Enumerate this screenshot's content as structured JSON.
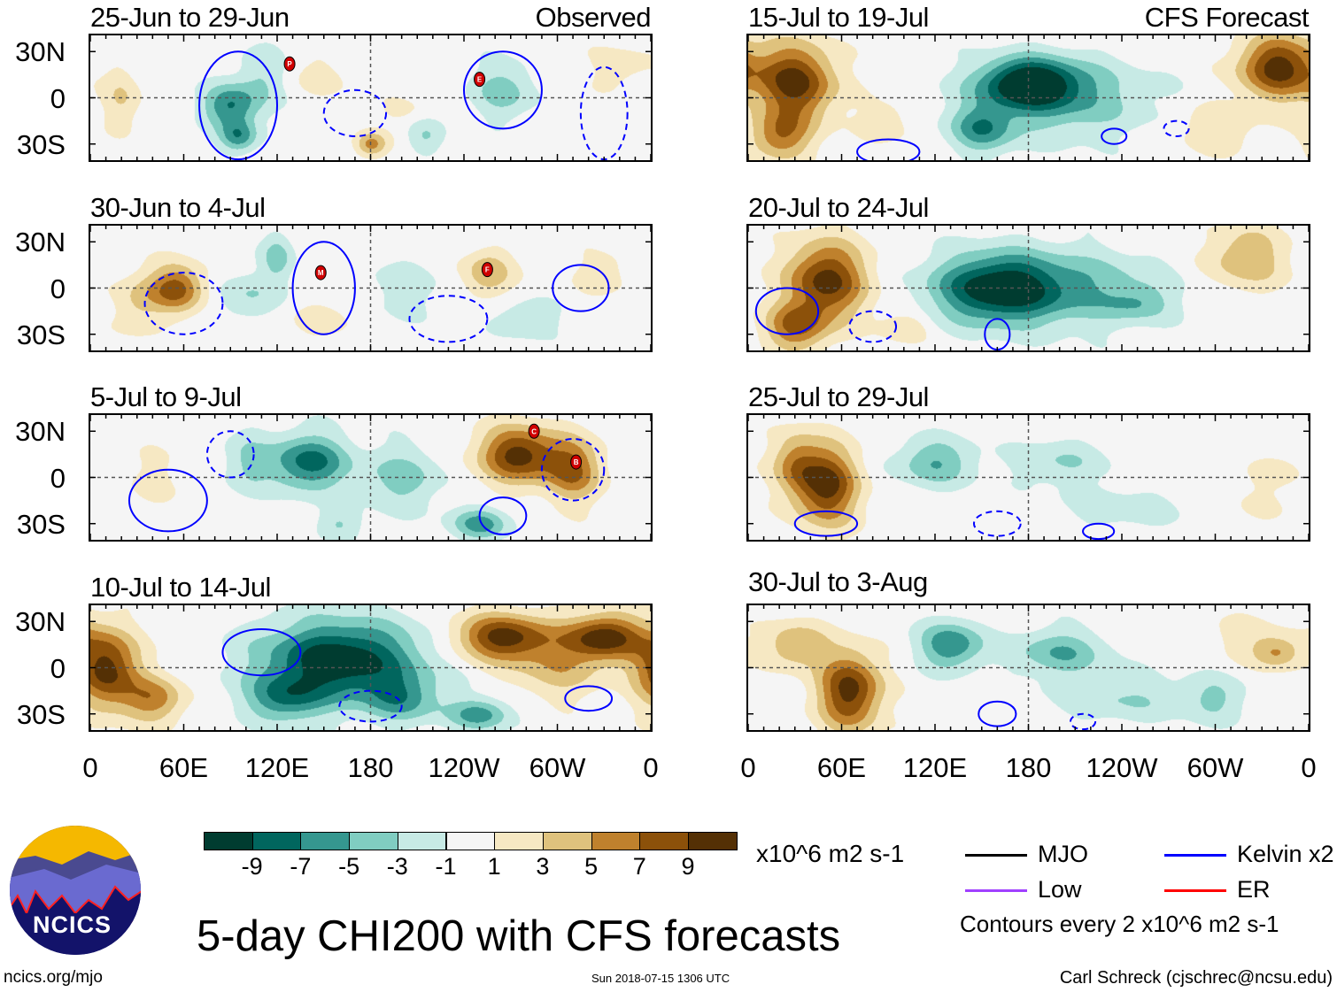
{
  "figure_title": "5-day CHI200 with CFS forecasts",
  "left_header": "Observed",
  "right_header": "CFS Forecast",
  "lat_labels": [
    "30N",
    "0",
    "30S"
  ],
  "lon_labels": [
    "0",
    "60E",
    "120E",
    "180",
    "120W",
    "60W",
    "0"
  ],
  "colorbar": {
    "unit": "x10^6 m2 s-1",
    "labels": [
      "-9",
      "-7",
      "-5",
      "-3",
      "-1",
      "1",
      "3",
      "5",
      "7",
      "9"
    ],
    "edges": [
      -9,
      -7,
      -5,
      -3,
      -1,
      1,
      3,
      5,
      7,
      9
    ],
    "colors": [
      "#003c30",
      "#01665e",
      "#35978f",
      "#80cdc1",
      "#c7eae5",
      "#f5f5f5",
      "#f6e8c3",
      "#dfc27d",
      "#bf812d",
      "#8c510a",
      "#543005"
    ]
  },
  "legend": {
    "items": [
      {
        "label": "MJO",
        "color": "#000000"
      },
      {
        "label": "Kelvin x2",
        "color": "#0000ff"
      },
      {
        "label": "Low",
        "color": "#a040ff"
      },
      {
        "label": "ER",
        "color": "#ff0000"
      }
    ],
    "contour_note": "Contours every 2 x10^6 m2 s-1"
  },
  "footer": {
    "site": "ncics.org/mjo",
    "timestamp": "Sun 2018-07-15 1306 UTC",
    "author": "Carl Schreck (cjschrec@ncsu.edu)",
    "logo_text": "NCICS"
  },
  "panels": [
    {
      "title": "25-Jun to 29-Jun",
      "column": "left",
      "row": 0,
      "anomalies": [
        [
          90,
          -5,
          18,
          14,
          -7
        ],
        [
          95,
          -25,
          12,
          10,
          -6
        ],
        [
          110,
          15,
          15,
          20,
          -3
        ],
        [
          265,
          5,
          20,
          18,
          -4
        ],
        [
          180,
          -30,
          10,
          8,
          6
        ],
        [
          20,
          0,
          12,
          20,
          3
        ],
        [
          150,
          15,
          25,
          15,
          1.5
        ],
        [
          340,
          20,
          20,
          15,
          2
        ],
        [
          215,
          -25,
          12,
          10,
          -3
        ],
        [
          200,
          -8,
          15,
          8,
          1.5
        ]
      ],
      "kelvin": [
        [
          95,
          -5,
          25,
          35,
          false
        ],
        [
          265,
          5,
          25,
          25,
          false
        ],
        [
          170,
          -10,
          20,
          15,
          true
        ],
        [
          330,
          -10,
          15,
          30,
          true
        ]
      ],
      "storms": [
        [
          128,
          22,
          "P"
        ],
        [
          250,
          12,
          "E"
        ]
      ]
    },
    {
      "title": "30-Jun to 4-Jul",
      "column": "left",
      "row": 1,
      "anomalies": [
        [
          55,
          0,
          18,
          15,
          8
        ],
        [
          30,
          -10,
          15,
          20,
          3
        ],
        [
          120,
          20,
          10,
          15,
          -4
        ],
        [
          100,
          -5,
          20,
          15,
          -3
        ],
        [
          150,
          -20,
          20,
          12,
          2
        ],
        [
          255,
          10,
          15,
          15,
          5
        ],
        [
          280,
          -20,
          20,
          12,
          -3
        ],
        [
          200,
          0,
          25,
          20,
          -2
        ],
        [
          330,
          10,
          20,
          15,
          2
        ]
      ],
      "kelvin": [
        [
          150,
          0,
          20,
          30,
          false
        ],
        [
          315,
          0,
          18,
          15,
          false
        ],
        [
          60,
          -10,
          25,
          20,
          true
        ],
        [
          230,
          -20,
          25,
          15,
          true
        ]
      ],
      "storms": [
        [
          148,
          10,
          "M"
        ],
        [
          255,
          12,
          "F"
        ]
      ]
    },
    {
      "title": "5-Jul to 9-Jul",
      "column": "left",
      "row": 2,
      "anomalies": [
        [
          140,
          10,
          25,
          18,
          -8
        ],
        [
          200,
          0,
          25,
          20,
          -4
        ],
        [
          100,
          10,
          15,
          20,
          -3
        ],
        [
          275,
          15,
          25,
          18,
          10
        ],
        [
          310,
          5,
          18,
          20,
          7
        ],
        [
          250,
          -30,
          18,
          10,
          -6
        ],
        [
          40,
          0,
          20,
          20,
          1.5
        ],
        [
          160,
          -30,
          15,
          10,
          -3
        ]
      ],
      "kelvin": [
        [
          265,
          -25,
          15,
          12,
          false
        ],
        [
          50,
          -15,
          25,
          20,
          false
        ],
        [
          90,
          15,
          15,
          15,
          true
        ],
        [
          310,
          5,
          20,
          20,
          true
        ]
      ],
      "storms": [
        [
          285,
          30,
          "C"
        ],
        [
          312,
          10,
          "B"
        ]
      ]
    },
    {
      "title": "10-Jul to 14-Jul",
      "column": "left",
      "row": 3,
      "anomalies": [
        [
          10,
          0,
          20,
          25,
          10
        ],
        [
          40,
          -20,
          20,
          15,
          6
        ],
        [
          160,
          5,
          50,
          25,
          -11
        ],
        [
          125,
          -20,
          25,
          15,
          -6
        ],
        [
          265,
          20,
          30,
          15,
          10
        ],
        [
          330,
          20,
          25,
          15,
          10
        ],
        [
          250,
          -30,
          20,
          10,
          -6
        ],
        [
          300,
          0,
          30,
          20,
          4
        ],
        [
          200,
          -20,
          25,
          15,
          -5
        ]
      ],
      "kelvin": [
        [
          180,
          -25,
          20,
          10,
          true
        ],
        [
          320,
          -20,
          15,
          8,
          false
        ],
        [
          110,
          10,
          25,
          15,
          false
        ]
      ],
      "storms": []
    },
    {
      "title": "15-Jul to 19-Jul",
      "column": "right",
      "row": 0,
      "anomalies": [
        [
          30,
          10,
          25,
          25,
          10
        ],
        [
          20,
          -25,
          20,
          15,
          6
        ],
        [
          180,
          10,
          30,
          15,
          -10
        ],
        [
          200,
          0,
          55,
          25,
          -5
        ],
        [
          150,
          -20,
          20,
          15,
          -6
        ],
        [
          340,
          20,
          25,
          20,
          10
        ],
        [
          300,
          -20,
          25,
          15,
          3
        ],
        [
          90,
          -15,
          20,
          15,
          2
        ]
      ],
      "kelvin": [
        [
          90,
          -35,
          20,
          8,
          false
        ],
        [
          235,
          -25,
          8,
          5,
          false
        ],
        [
          275,
          -20,
          8,
          5,
          true
        ]
      ],
      "storms": []
    },
    {
      "title": "20-Jul to 24-Jul",
      "column": "right",
      "row": 1,
      "anomalies": [
        [
          50,
          5,
          25,
          25,
          10
        ],
        [
          30,
          -25,
          20,
          15,
          7
        ],
        [
          160,
          0,
          40,
          22,
          -11
        ],
        [
          220,
          0,
          50,
          25,
          -4
        ],
        [
          320,
          20,
          25,
          20,
          5
        ],
        [
          250,
          -10,
          20,
          10,
          -3
        ],
        [
          100,
          -25,
          15,
          10,
          3
        ]
      ],
      "kelvin": [
        [
          25,
          -15,
          20,
          15,
          false
        ],
        [
          160,
          -30,
          8,
          10,
          false
        ],
        [
          80,
          -25,
          15,
          10,
          true
        ]
      ],
      "storms": []
    },
    {
      "title": "25-Jul to 29-Jul",
      "column": "right",
      "row": 2,
      "anomalies": [
        [
          50,
          -5,
          20,
          25,
          10
        ],
        [
          30,
          10,
          15,
          20,
          5
        ],
        [
          120,
          10,
          25,
          15,
          -5
        ],
        [
          200,
          10,
          30,
          15,
          -3
        ],
        [
          240,
          -20,
          40,
          15,
          -2
        ],
        [
          340,
          5,
          15,
          10,
          2
        ],
        [
          330,
          -15,
          25,
          15,
          1.2
        ]
      ],
      "kelvin": [
        [
          50,
          -30,
          20,
          8,
          false
        ],
        [
          225,
          -35,
          10,
          5,
          false
        ],
        [
          160,
          -30,
          15,
          8,
          true
        ]
      ],
      "storms": []
    },
    {
      "title": "30-Jul to 3-Aug",
      "column": "right",
      "row": 3,
      "anomalies": [
        [
          65,
          -15,
          20,
          25,
          10
        ],
        [
          30,
          15,
          20,
          15,
          5
        ],
        [
          130,
          15,
          20,
          15,
          -7
        ],
        [
          200,
          10,
          30,
          15,
          -5
        ],
        [
          240,
          -20,
          45,
          15,
          -3
        ],
        [
          300,
          -20,
          20,
          15,
          -3
        ],
        [
          340,
          10,
          15,
          10,
          5
        ],
        [
          320,
          20,
          25,
          15,
          2
        ]
      ],
      "kelvin": [
        [
          160,
          -30,
          12,
          8,
          false
        ],
        [
          215,
          -35,
          8,
          5,
          true
        ]
      ],
      "storms": []
    }
  ]
}
